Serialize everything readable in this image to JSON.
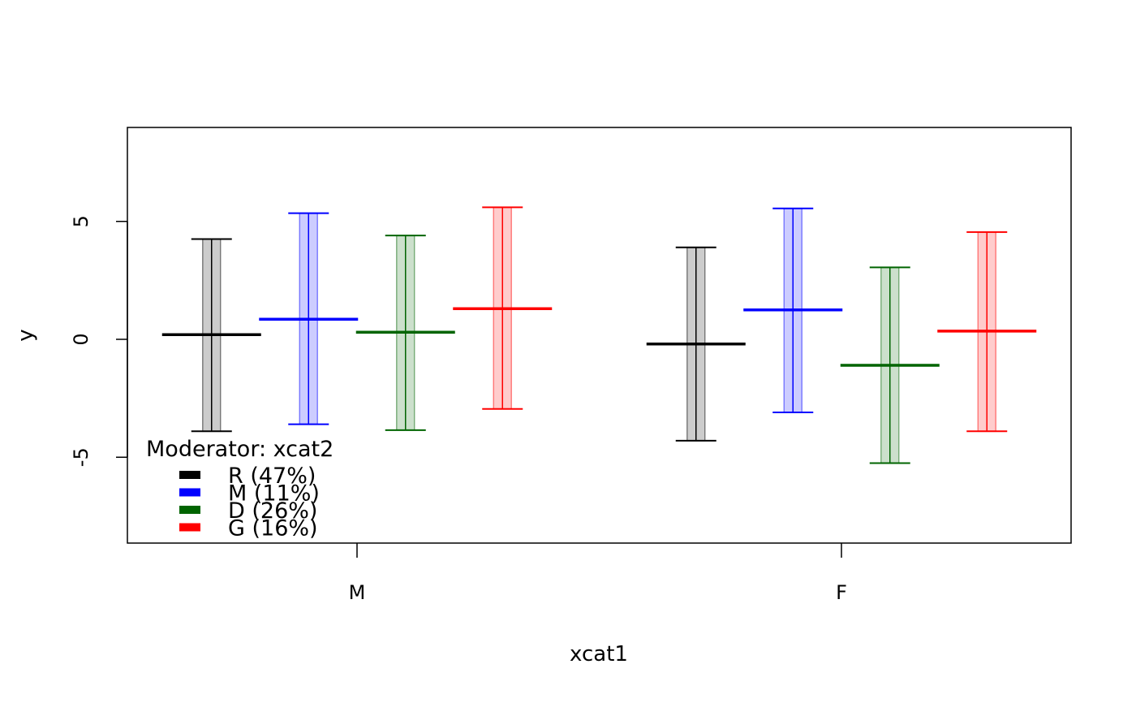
{
  "chart_data": {
    "type": "errorbar",
    "title": "",
    "xlabel": "xcat1",
    "ylabel": "y",
    "ylim": [
      -8.7,
      8.9
    ],
    "yticks": [
      -5,
      0,
      5
    ],
    "ytick_labels": [
      "-5",
      "0",
      "5"
    ],
    "categories": [
      "M",
      "F"
    ],
    "grid": false,
    "legend": {
      "title": "Moderator: xcat2",
      "placement": "bottom-left",
      "entries": [
        {
          "label": "R (47%)",
          "color": "#000000"
        },
        {
          "label": "M (11%)",
          "color": "#0000ff"
        },
        {
          "label": "D (26%)",
          "color": "#006400"
        },
        {
          "label": "G (16%)",
          "color": "#ff0000"
        }
      ]
    },
    "series": [
      {
        "name": "R",
        "color": "#000000",
        "fill": "#cccccc",
        "mean": [
          0.2,
          -0.2
        ],
        "lower": [
          -3.9,
          -4.3
        ],
        "upper": [
          4.25,
          3.9
        ]
      },
      {
        "name": "M",
        "color": "#0000ff",
        "fill": "#ccccff",
        "mean": [
          0.85,
          1.25
        ],
        "lower": [
          -3.6,
          -3.1
        ],
        "upper": [
          5.35,
          5.55
        ]
      },
      {
        "name": "D",
        "color": "#006400",
        "fill": "#cce0cc",
        "mean": [
          0.3,
          -1.1
        ],
        "lower": [
          -3.85,
          -5.25
        ],
        "upper": [
          4.4,
          3.05
        ]
      },
      {
        "name": "G",
        "color": "#ff0000",
        "fill": "#ffcccc",
        "mean": [
          1.3,
          0.35
        ],
        "lower": [
          -2.95,
          -3.9
        ],
        "upper": [
          5.6,
          4.55
        ]
      }
    ]
  }
}
